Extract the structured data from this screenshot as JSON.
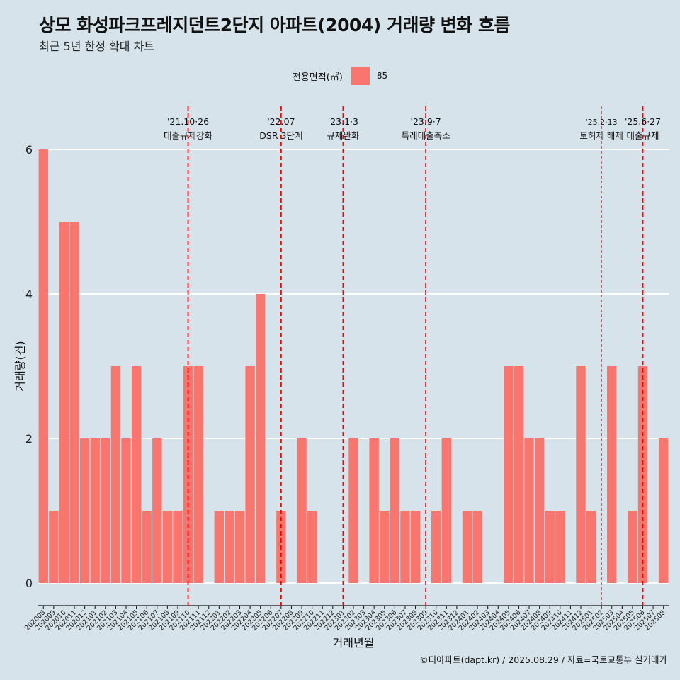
{
  "header": {
    "title": "상모 화성파크프레지던트2단지 아파트(2004) 거래량 변화 흐름",
    "subtitle": "최근 5년 한정 확대 차트"
  },
  "caption": "©디아파트(dapt.kr) / 2025.08.29 / 자료=국토교통부 실거래가",
  "colors": {
    "background": "#d6e3ea",
    "bar": "#f8766d",
    "vline": "#ff0000",
    "grid": "#ffffff"
  },
  "chart_data": {
    "type": "bar",
    "title": "상모 화성파크프레지던트2단지 아파트(2004) 거래량 변화 흐름",
    "subtitle": "최근 5년 한정 확대 차트",
    "xlabel": "거래년월",
    "ylabel": "거래량(건)",
    "legend": {
      "title": "전용면적(㎡)",
      "position": "top",
      "entries": [
        "85"
      ]
    },
    "ylim": [
      0,
      6
    ],
    "yticks": [
      0,
      2,
      4,
      6
    ],
    "grid": true,
    "categories": [
      "202008",
      "202009",
      "202010",
      "202011",
      "202012",
      "202101",
      "202102",
      "202103",
      "202104",
      "202105",
      "202106",
      "202107",
      "202108",
      "202109",
      "202110",
      "202111",
      "202112",
      "202201",
      "202202",
      "202203",
      "202204",
      "202205",
      "202206",
      "202207",
      "202208",
      "202209",
      "202210",
      "202211",
      "202212",
      "202301",
      "202302",
      "202303",
      "202304",
      "202305",
      "202306",
      "202307",
      "202308",
      "202309",
      "202310",
      "202311",
      "202312",
      "202401",
      "202402",
      "202403",
      "202404",
      "202405",
      "202406",
      "202407",
      "202408",
      "202409",
      "202410",
      "202411",
      "202412",
      "202501",
      "202502",
      "202503",
      "202504",
      "202505",
      "202506",
      "202507",
      "202508"
    ],
    "series": [
      {
        "name": "85",
        "values": [
          6,
          1,
          5,
          5,
          2,
          2,
          2,
          3,
          2,
          3,
          1,
          2,
          1,
          1,
          3,
          3,
          0,
          1,
          1,
          1,
          3,
          4,
          0,
          1,
          0,
          2,
          1,
          0,
          0,
          0,
          2,
          0,
          2,
          1,
          2,
          1,
          1,
          0,
          1,
          2,
          0,
          1,
          1,
          0,
          0,
          3,
          3,
          2,
          2,
          1,
          1,
          0,
          3,
          1,
          0,
          3,
          0,
          1,
          3,
          0,
          2
        ]
      }
    ],
    "annotations": [
      {
        "category": "202110",
        "date": "'21.10·26",
        "label": "대출규제강화",
        "style": "dashed"
      },
      {
        "category": "202207",
        "date": "'22.07",
        "label": "DSR 3단계",
        "style": "dashed"
      },
      {
        "category": "202301",
        "date": "'23.1·3",
        "label": "규제완화",
        "style": "dashed"
      },
      {
        "category": "202309",
        "date": "'23.9·7",
        "label": "특례대출축소",
        "style": "dashed"
      },
      {
        "category": "202502",
        "date": "'25.2·13",
        "label": "토허제 해제",
        "style": "thin-dashed"
      },
      {
        "category": "202506",
        "date": "'25.6·27",
        "label": "대출규제",
        "style": "dashed"
      }
    ]
  }
}
